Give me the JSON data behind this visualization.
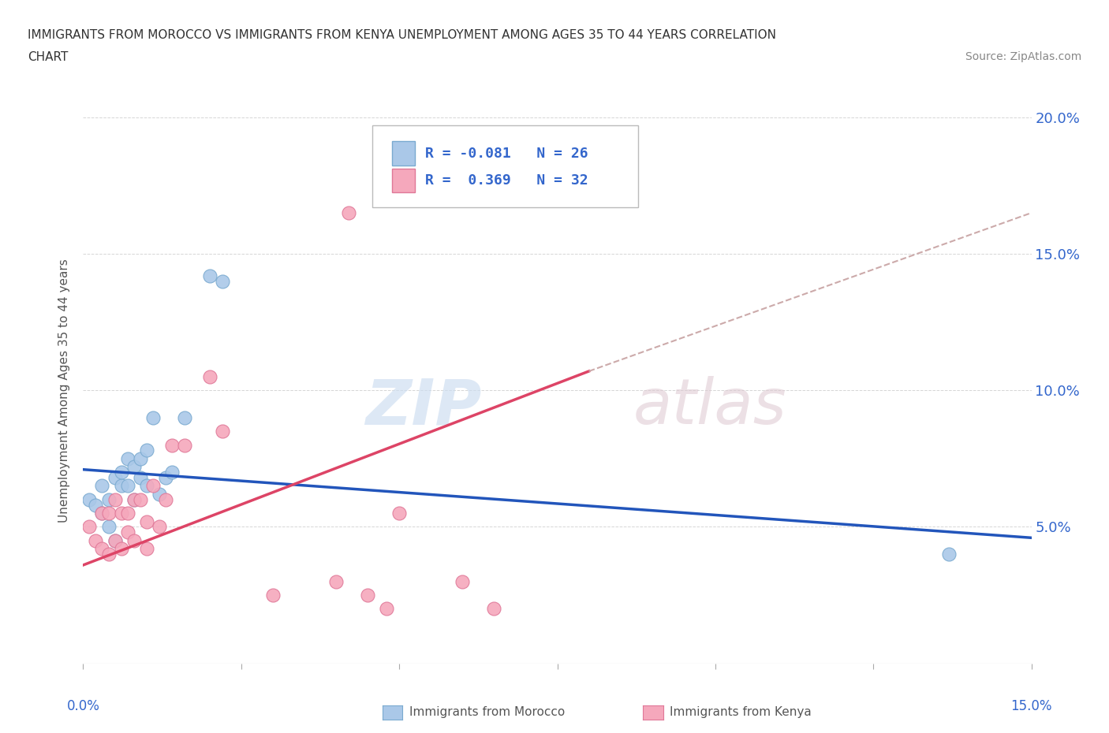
{
  "title_line1": "IMMIGRANTS FROM MOROCCO VS IMMIGRANTS FROM KENYA UNEMPLOYMENT AMONG AGES 35 TO 44 YEARS CORRELATION",
  "title_line2": "CHART",
  "source": "Source: ZipAtlas.com",
  "ylabel": "Unemployment Among Ages 35 to 44 years",
  "xlim": [
    0,
    0.15
  ],
  "ylim": [
    0,
    0.2
  ],
  "yticks": [
    0.05,
    0.1,
    0.15,
    0.2
  ],
  "ytick_labels": [
    "5.0%",
    "10.0%",
    "15.0%",
    "20.0%"
  ],
  "xticks": [
    0.0,
    0.025,
    0.05,
    0.075,
    0.1,
    0.125,
    0.15
  ],
  "morocco_color": "#aac8e8",
  "kenya_color": "#f5a8bc",
  "morocco_edge": "#7aaad0",
  "kenya_edge": "#e07898",
  "trend_morocco_color": "#2255bb",
  "trend_kenya_color": "#dd4466",
  "trend_kenya_dashed_color": "#ccaaaa",
  "legend_label_morocco": "R = -0.081   N = 26",
  "legend_label_kenya": "R =  0.369   N = 32",
  "legend_bottom_morocco": "Immigrants from Morocco",
  "legend_bottom_kenya": "Immigrants from Kenya",
  "background_color": "#ffffff",
  "grid_color": "#cccccc",
  "tick_color": "#3366cc",
  "ylabel_color": "#555555",
  "morocco_x": [
    0.001,
    0.002,
    0.003,
    0.003,
    0.004,
    0.004,
    0.005,
    0.005,
    0.006,
    0.006,
    0.007,
    0.007,
    0.008,
    0.008,
    0.009,
    0.009,
    0.01,
    0.01,
    0.011,
    0.012,
    0.013,
    0.014,
    0.016,
    0.02,
    0.022,
    0.137
  ],
  "morocco_y": [
    0.06,
    0.058,
    0.065,
    0.055,
    0.06,
    0.05,
    0.068,
    0.045,
    0.065,
    0.07,
    0.065,
    0.075,
    0.06,
    0.072,
    0.075,
    0.068,
    0.078,
    0.065,
    0.09,
    0.062,
    0.068,
    0.07,
    0.09,
    0.142,
    0.14,
    0.04
  ],
  "kenya_x": [
    0.001,
    0.002,
    0.003,
    0.003,
    0.004,
    0.004,
    0.005,
    0.005,
    0.006,
    0.006,
    0.007,
    0.007,
    0.008,
    0.008,
    0.009,
    0.01,
    0.01,
    0.011,
    0.012,
    0.013,
    0.014,
    0.016,
    0.02,
    0.022,
    0.03,
    0.04,
    0.042,
    0.045,
    0.048,
    0.05,
    0.06,
    0.065
  ],
  "kenya_y": [
    0.05,
    0.045,
    0.055,
    0.042,
    0.055,
    0.04,
    0.06,
    0.045,
    0.042,
    0.055,
    0.055,
    0.048,
    0.06,
    0.045,
    0.06,
    0.042,
    0.052,
    0.065,
    0.05,
    0.06,
    0.08,
    0.08,
    0.105,
    0.085,
    0.025,
    0.03,
    0.165,
    0.025,
    0.02,
    0.055,
    0.03,
    0.02
  ],
  "trend_morocco_x0": 0.0,
  "trend_morocco_x1": 0.15,
  "trend_morocco_y0": 0.071,
  "trend_morocco_y1": 0.046,
  "trend_kenya_x0": 0.0,
  "trend_kenya_x1": 0.08,
  "trend_kenya_y0": 0.036,
  "trend_kenya_y1": 0.107,
  "trend_kenya_dash_x0": 0.08,
  "trend_kenya_dash_x1": 0.15,
  "trend_kenya_dash_y0": 0.107,
  "trend_kenya_dash_y1": 0.165
}
